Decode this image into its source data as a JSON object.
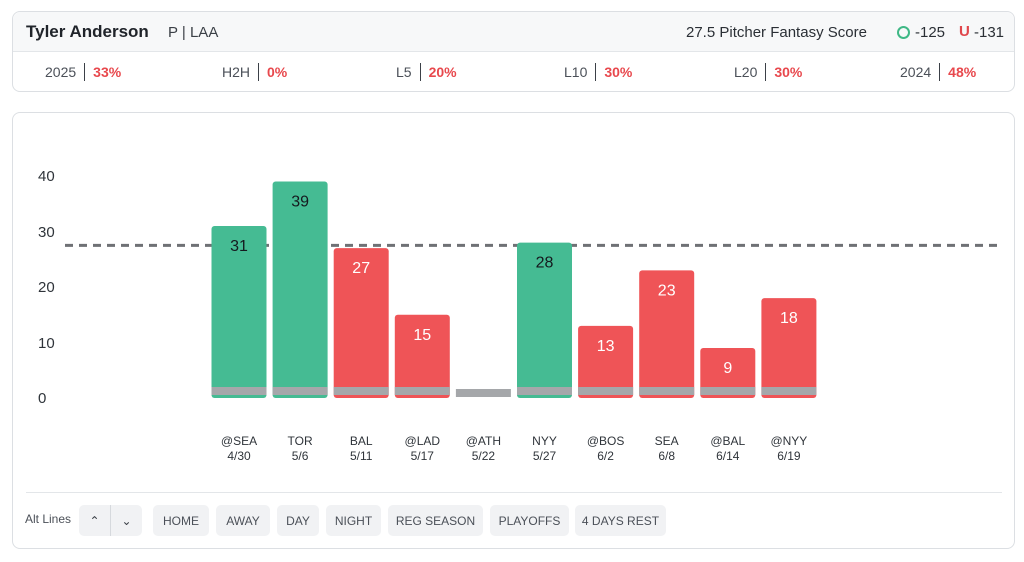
{
  "player": {
    "name": "Tyler Anderson",
    "meta": "P | LAA",
    "score_label": "27.5 Pitcher Fantasy Score",
    "over_odds": "-125",
    "under_symbol": "U",
    "under_odds": "-131"
  },
  "splits": [
    {
      "label": "2025",
      "pct": "33%"
    },
    {
      "label": "H2H",
      "pct": "0%"
    },
    {
      "label": "L5",
      "pct": "20%"
    },
    {
      "label": "L10",
      "pct": "30%"
    },
    {
      "label": "L20",
      "pct": "30%"
    },
    {
      "label": "2024",
      "pct": "48%"
    }
  ],
  "chart_data": {
    "type": "bar",
    "yticks": [
      "40",
      "30",
      "20",
      "10",
      "0"
    ],
    "ylim": [
      0,
      40
    ],
    "line": 27.5,
    "categories": [
      {
        "opp": "@SEA",
        "date": "4/30"
      },
      {
        "opp": "TOR",
        "date": "5/6"
      },
      {
        "opp": "BAL",
        "date": "5/11"
      },
      {
        "opp": "@LAD",
        "date": "5/17"
      },
      {
        "opp": "@ATH",
        "date": "5/22"
      },
      {
        "opp": "NYY",
        "date": "5/27"
      },
      {
        "opp": "@BOS",
        "date": "6/2"
      },
      {
        "opp": "SEA",
        "date": "6/8"
      },
      {
        "opp": "@BAL",
        "date": "6/14"
      },
      {
        "opp": "@NYY",
        "date": "6/19"
      }
    ],
    "values": [
      31,
      39,
      27,
      15,
      null,
      28,
      13,
      23,
      9,
      18
    ],
    "labels": [
      "31",
      "39",
      "27",
      "15",
      "",
      "28",
      "13",
      "23",
      "9",
      "18"
    ],
    "colors": {
      "over": "#45bb93",
      "under": "#ef5457",
      "base": "#a5a7aa",
      "line": "#6f7175"
    }
  },
  "controls": {
    "alt_lines_label": "Alt Lines",
    "up_glyph": "⌃",
    "down_glyph": "⌄",
    "filters": [
      "HOME",
      "AWAY",
      "DAY",
      "NIGHT",
      "REG SEASON",
      "PLAYOFFS",
      "4 DAYS REST"
    ]
  }
}
